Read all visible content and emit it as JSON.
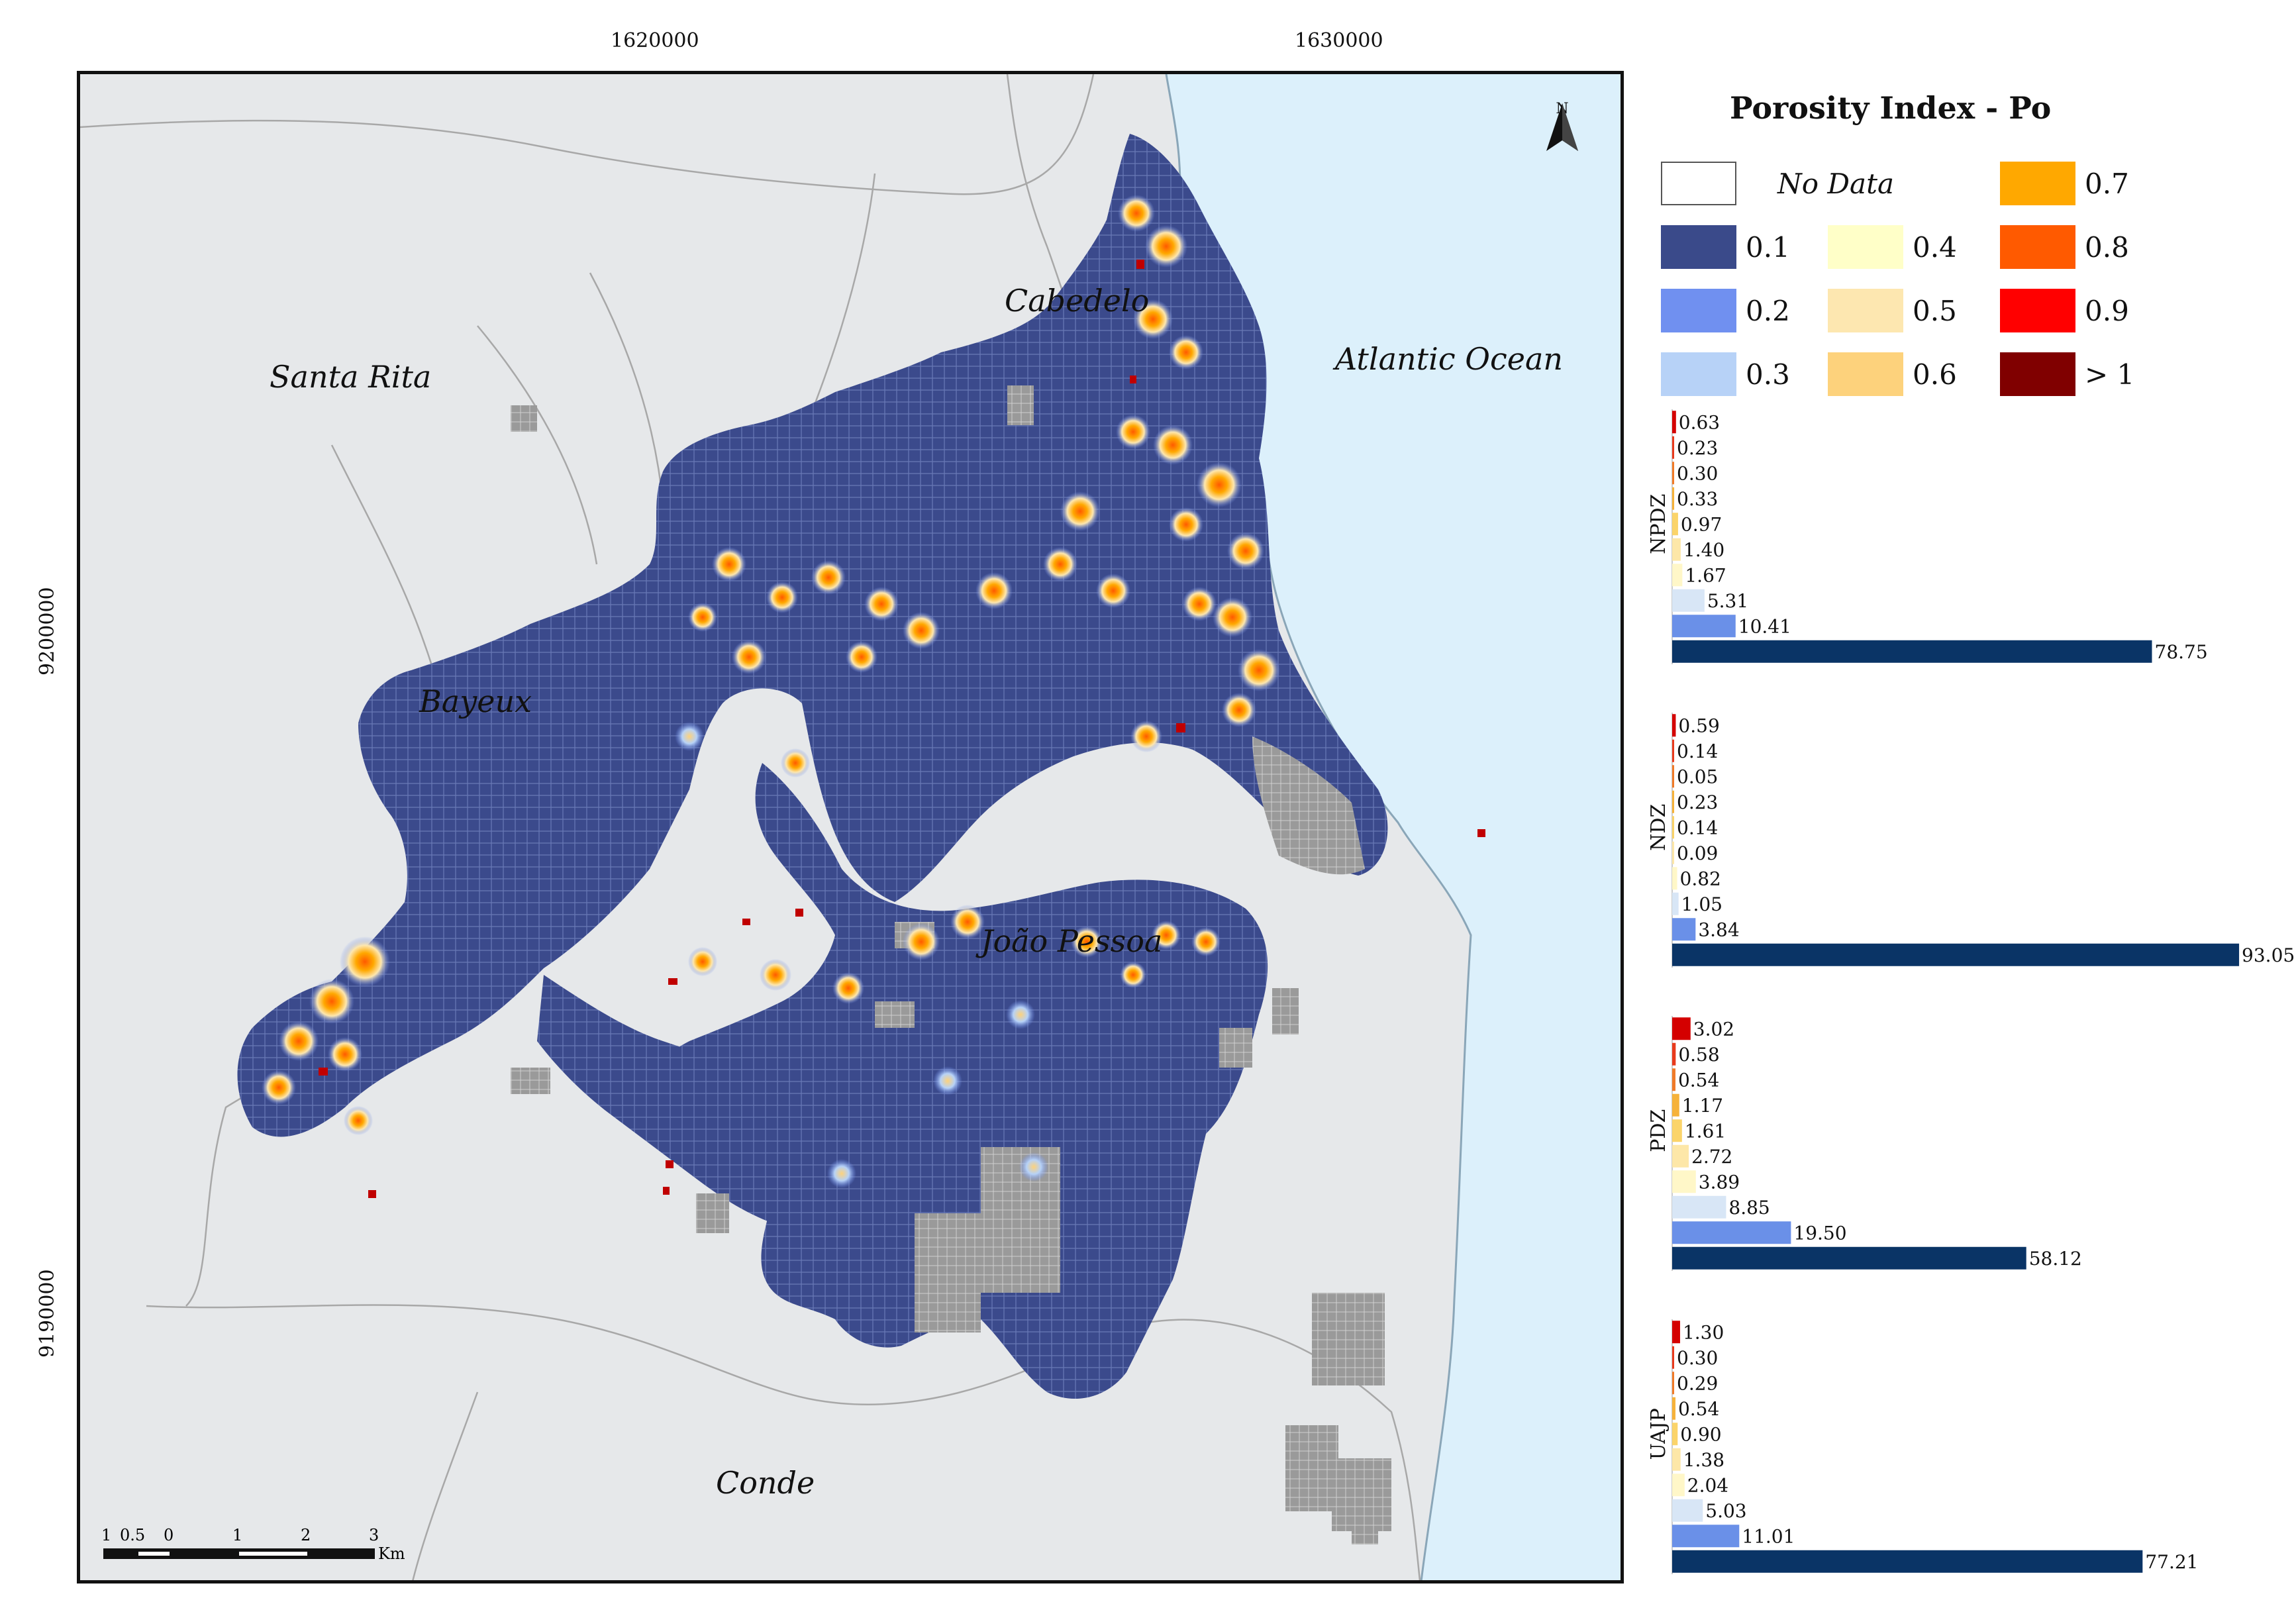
{
  "axes": {
    "x_ticks": [
      "1620000",
      "1630000"
    ],
    "y_ticks": [
      "9200000",
      "9190000"
    ]
  },
  "map": {
    "place_labels": {
      "santa_rita": "Santa Rita",
      "cabedelo": "Cabedelo",
      "atlantic_ocean": "Atlantic Ocean",
      "bayeux": "Bayeux",
      "joao_pessoa": "João Pessoa",
      "conde": "Conde"
    },
    "north_arrow": "N",
    "scale_bar": {
      "ticks": [
        "1",
        "0.5",
        "0",
        "1",
        "2",
        "3"
      ],
      "unit": "Km"
    },
    "colors": {
      "ocean": "#dcf0fb",
      "land": "#e6e8ea",
      "no_data_blocks": "#9a9a9a",
      "urban_low": "#3b4a8c"
    }
  },
  "legend": {
    "title": "Porosity Index - Po",
    "items": [
      {
        "label": "No Data",
        "color": "#ffffff",
        "italic": true
      },
      {
        "label": "0.1",
        "color": "#3a4a8a"
      },
      {
        "label": "0.2",
        "color": "#7090f0"
      },
      {
        "label": "0.3",
        "color": "#b7d2f7"
      },
      {
        "label": "0.4",
        "color": "#ffffc8"
      },
      {
        "label": "0.5",
        "color": "#fde7b0"
      },
      {
        "label": "0.6",
        "color": "#fdd27c"
      },
      {
        "label": "0.7",
        "color": "#ffa800"
      },
      {
        "label": "0.8",
        "color": "#ff5a00"
      },
      {
        "label": "0.9",
        "color": "#ff0000"
      },
      {
        "label": "> 1",
        "color": "#800000"
      }
    ]
  },
  "chart_data": [
    {
      "type": "bar",
      "orientation": "horizontal",
      "title": "NPDZ",
      "categories": [
        "> 1",
        "0.9",
        "0.8",
        "0.7",
        "0.6",
        "0.5",
        "0.4",
        "0.3",
        "0.2",
        "0.1"
      ],
      "values": [
        0.63,
        0.23,
        0.3,
        0.33,
        0.97,
        1.4,
        1.67,
        5.31,
        10.41,
        78.75
      ],
      "labels": [
        "0.63",
        "0.23",
        "0.30",
        "0.33",
        "0.97",
        "1.40",
        "1.67",
        "5.31",
        "10.41",
        "78.75"
      ],
      "xlim": [
        0,
        100
      ]
    },
    {
      "type": "bar",
      "orientation": "horizontal",
      "title": "NDZ",
      "categories": [
        "> 1",
        "0.9",
        "0.8",
        "0.7",
        "0.6",
        "0.5",
        "0.4",
        "0.3",
        "0.2",
        "0.1"
      ],
      "values": [
        0.59,
        0.14,
        0.05,
        0.23,
        0.14,
        0.09,
        0.82,
        1.05,
        3.84,
        93.05
      ],
      "labels": [
        "0.59",
        "0.14",
        "0.05",
        "0.23",
        "0.14",
        "0.09",
        "0.82",
        "1.05",
        "3.84",
        "93.05"
      ],
      "xlim": [
        0,
        100
      ]
    },
    {
      "type": "bar",
      "orientation": "horizontal",
      "title": "PDZ",
      "categories": [
        "> 1",
        "0.9",
        "0.8",
        "0.7",
        "0.6",
        "0.5",
        "0.4",
        "0.3",
        "0.2",
        "0.1"
      ],
      "values": [
        3.02,
        0.58,
        0.54,
        1.17,
        1.61,
        2.72,
        3.89,
        8.85,
        19.5,
        58.12
      ],
      "labels": [
        "3.02",
        "0.58",
        "0.54",
        "1.17",
        "1.61",
        "2.72",
        "3.89",
        "8.85",
        "19.50",
        "58.12"
      ],
      "xlim": [
        0,
        100
      ]
    },
    {
      "type": "bar",
      "orientation": "horizontal",
      "title": "UAJP",
      "categories": [
        "> 1",
        "0.9",
        "0.8",
        "0.7",
        "0.6",
        "0.5",
        "0.4",
        "0.3",
        "0.2",
        "0.1"
      ],
      "values": [
        1.3,
        0.3,
        0.29,
        0.54,
        0.9,
        1.38,
        2.04,
        5.03,
        11.01,
        77.21
      ],
      "labels": [
        "1.30",
        "0.30",
        "0.29",
        "0.54",
        "0.90",
        "1.38",
        "2.04",
        "5.03",
        "11.01",
        "77.21"
      ],
      "xlim": [
        0,
        100
      ]
    }
  ],
  "bar_colors": [
    "#d40000",
    "#e83a1c",
    "#f07a28",
    "#f6b23a",
    "#fbd46a",
    "#fde7a8",
    "#fff7c8",
    "#d8e6f6",
    "#6a90e8",
    "#0a3466"
  ]
}
